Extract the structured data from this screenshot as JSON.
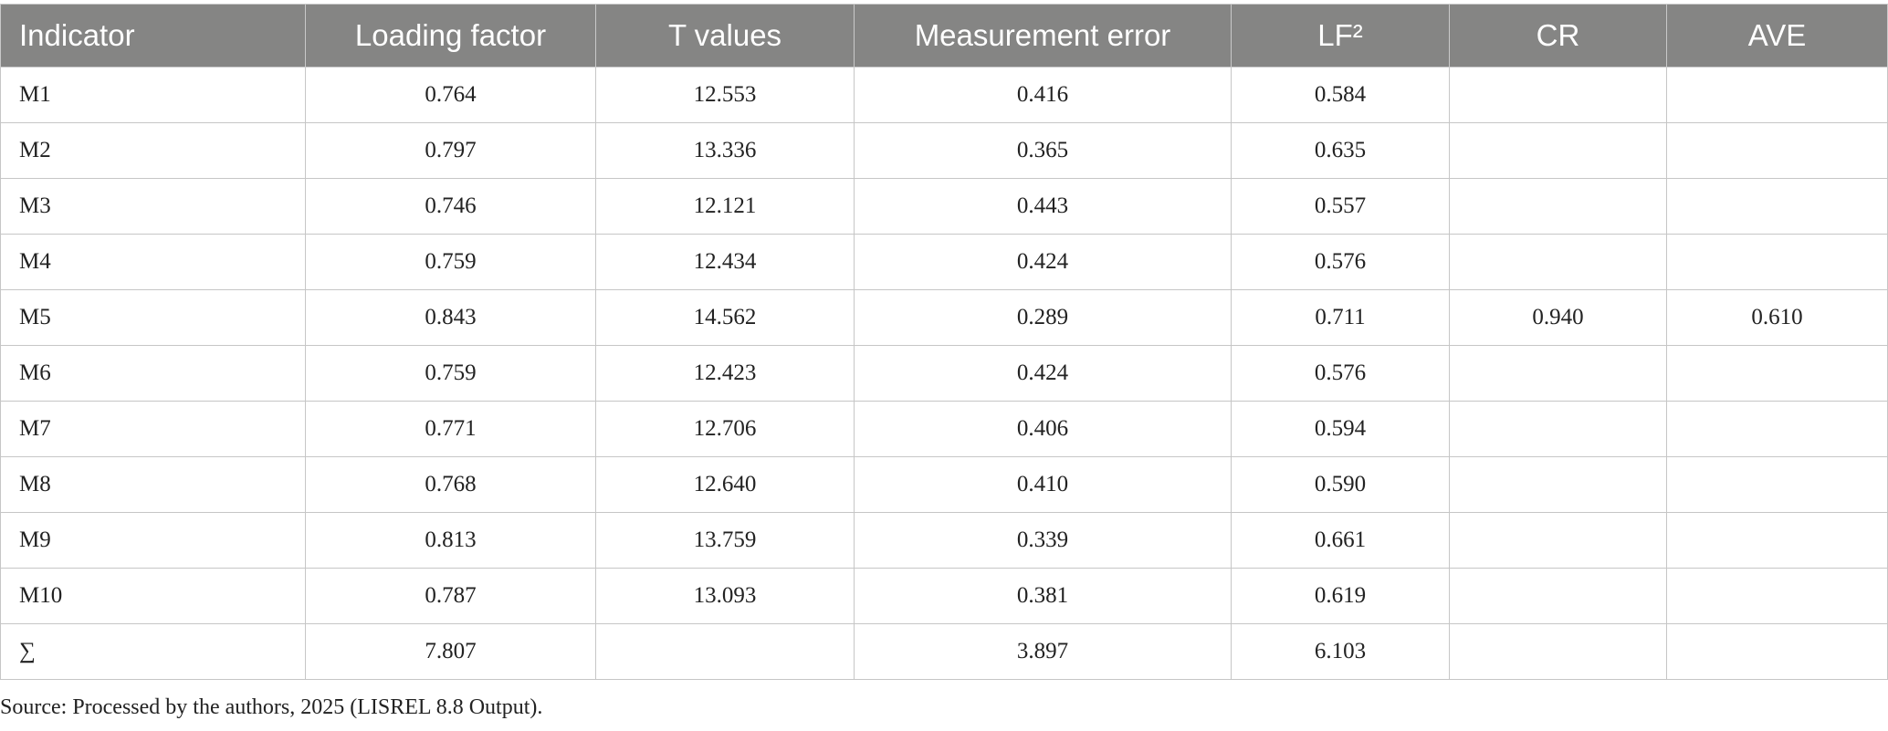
{
  "table": {
    "headers": [
      "Indicator",
      "Loading factor",
      "T values",
      "Measurement error",
      "LF²",
      "CR",
      "AVE"
    ],
    "rows": [
      {
        "indicator": "M1",
        "loading_factor": "0.764",
        "t_value": "12.553",
        "measurement_error": "0.416",
        "lf2": "0.584"
      },
      {
        "indicator": "M2",
        "loading_factor": "0.797",
        "t_value": "13.336",
        "measurement_error": "0.365",
        "lf2": "0.635"
      },
      {
        "indicator": "M3",
        "loading_factor": "0.746",
        "t_value": "12.121",
        "measurement_error": "0.443",
        "lf2": "0.557"
      },
      {
        "indicator": "M4",
        "loading_factor": "0.759",
        "t_value": "12.434",
        "measurement_error": "0.424",
        "lf2": "0.576"
      },
      {
        "indicator": "M5",
        "loading_factor": "0.843",
        "t_value": "14.562",
        "measurement_error": "0.289",
        "lf2": "0.711",
        "cr": "0.940",
        "ave": "0.610"
      },
      {
        "indicator": "M6",
        "loading_factor": "0.759",
        "t_value": "12.423",
        "measurement_error": "0.424",
        "lf2": "0.576"
      },
      {
        "indicator": "M7",
        "loading_factor": "0.771",
        "t_value": "12.706",
        "measurement_error": "0.406",
        "lf2": "0.594"
      },
      {
        "indicator": "M8",
        "loading_factor": "0.768",
        "t_value": "12.640",
        "measurement_error": "0.410",
        "lf2": "0.590"
      },
      {
        "indicator": "M9",
        "loading_factor": "0.813",
        "t_value": "13.759",
        "measurement_error": "0.339",
        "lf2": "0.661"
      },
      {
        "indicator": "M10",
        "loading_factor": "0.787",
        "t_value": "13.093",
        "measurement_error": "0.381",
        "lf2": "0.619"
      },
      {
        "indicator": "∑",
        "loading_factor": "7.807",
        "measurement_error": "3.897",
        "lf2": "6.103"
      }
    ],
    "source": "Source: Processed by the authors, 2025 (LISREL 8.8 Output)."
  }
}
